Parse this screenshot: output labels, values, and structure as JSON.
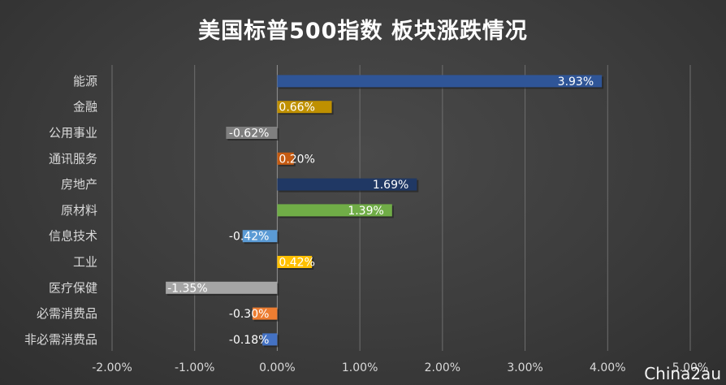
{
  "chart_data": {
    "type": "bar",
    "orientation": "horizontal",
    "title": "美国标普500指数 板块涨跌情况",
    "categories": [
      "能源",
      "金融",
      "公用事业",
      "通讯服务",
      "房地产",
      "原材料",
      "信息技术",
      "工业",
      "医疗保健",
      "必需消费品",
      "非必需消费品"
    ],
    "values": [
      3.93,
      0.66,
      -0.62,
      0.2,
      1.69,
      1.39,
      -0.42,
      0.42,
      -1.35,
      -0.3,
      -0.18
    ],
    "value_labels": [
      "3.93%",
      "0.66%",
      "-0.62%",
      "0.20%",
      "1.69%",
      "1.39%",
      "-0.42%",
      "0.42%",
      "-1.35%",
      "-0.30%",
      "-0.18%"
    ],
    "colors": [
      "#2f5597",
      "#bf9000",
      "#7f7f7f",
      "#c55a11",
      "#203864",
      "#70ad47",
      "#5b9bd5",
      "#ffc000",
      "#a5a5a5",
      "#ed7d31",
      "#4472c4"
    ],
    "xlim": [
      -2,
      5
    ],
    "x_ticks": [
      -2,
      -1,
      0,
      1,
      2,
      3,
      4,
      5
    ],
    "x_tick_labels": [
      "-2.00%",
      "-1.00%",
      "0.00%",
      "1.00%",
      "2.00%",
      "3.00%",
      "4.00%",
      "5.00%"
    ],
    "grid": true,
    "legend": "none"
  },
  "watermark": "China2au"
}
